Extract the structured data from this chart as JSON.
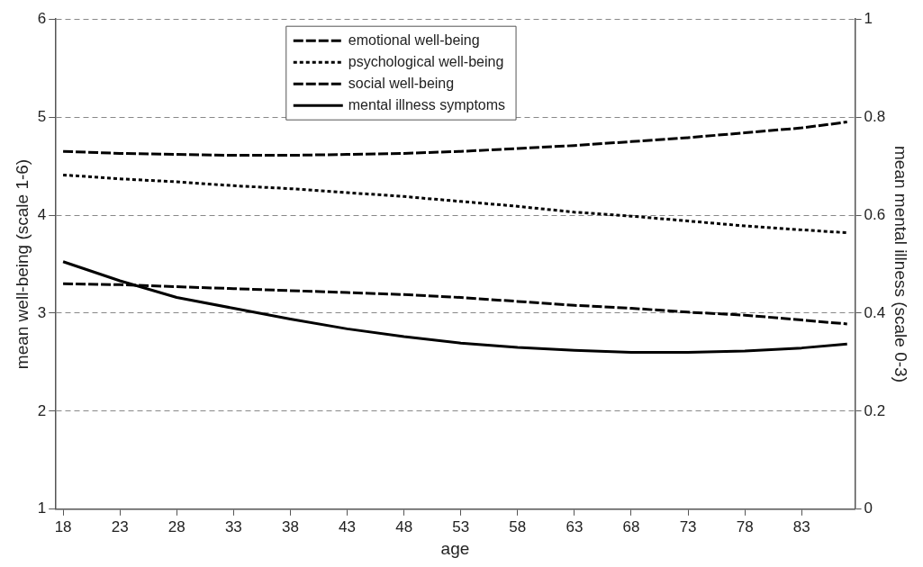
{
  "chart_data": {
    "type": "line",
    "xlabel": "age",
    "ylabel": "mean well-being (scale 1-6)",
    "y2label": "mean mental illness (scale 0-3)",
    "x": [
      18,
      23,
      28,
      33,
      38,
      43,
      48,
      53,
      58,
      63,
      68,
      73,
      78,
      83,
      87
    ],
    "xlim": [
      17.3,
      87.7
    ],
    "xticks": [
      18,
      23,
      28,
      33,
      38,
      43,
      48,
      53,
      58,
      63,
      68,
      73,
      78,
      83
    ],
    "ylim": [
      1,
      6
    ],
    "yticks": [
      1,
      2,
      3,
      4,
      5,
      6
    ],
    "y2lim": [
      0,
      1
    ],
    "y2ticks": [
      0,
      0.2,
      0.4,
      0.6,
      0.8,
      1
    ],
    "grid": "y",
    "legend": "top",
    "marker": "none",
    "series": [
      {
        "name": "emotional well-being",
        "color": "#000000",
        "line_style": "dashed",
        "values": [
          4.65,
          4.63,
          4.62,
          4.61,
          4.61,
          4.62,
          4.63,
          4.65,
          4.68,
          4.71,
          4.75,
          4.79,
          4.84,
          4.89,
          4.95
        ]
      },
      {
        "name": "psychological well-being",
        "color": "#000000",
        "line_style": "dotted",
        "values": [
          4.41,
          4.37,
          4.34,
          4.3,
          4.27,
          4.23,
          4.19,
          4.14,
          4.09,
          4.03,
          3.99,
          3.94,
          3.89,
          3.85,
          3.82
        ]
      },
      {
        "name": "social well-being",
        "color": "#000000",
        "line_style": "dashed",
        "values": [
          3.3,
          3.29,
          3.27,
          3.25,
          3.23,
          3.21,
          3.19,
          3.16,
          3.12,
          3.08,
          3.05,
          3.01,
          2.98,
          2.93,
          2.89
        ]
      },
      {
        "name": "mental illness symptoms",
        "color": "#000000",
        "line_style": "solid",
        "axis": "y2",
        "values": [
          0.505,
          0.466,
          0.432,
          0.41,
          0.388,
          0.368,
          0.352,
          0.339,
          0.33,
          0.324,
          0.32,
          0.32,
          0.323,
          0.329,
          0.337
        ]
      }
    ]
  }
}
